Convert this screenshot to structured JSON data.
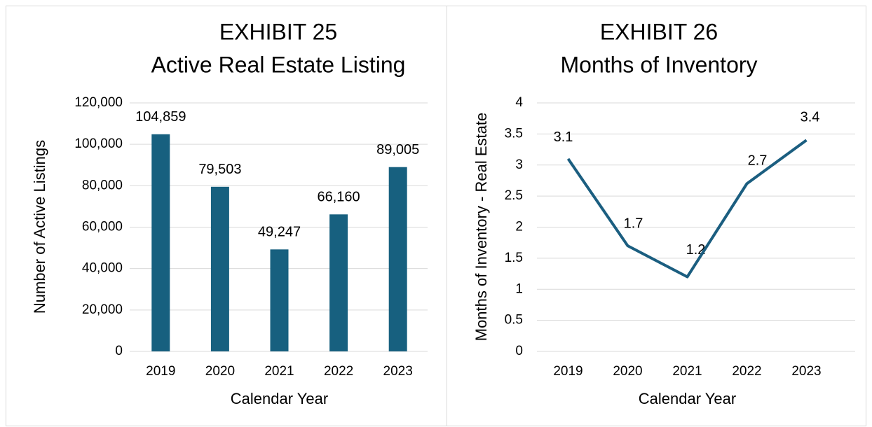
{
  "chart_data": [
    {
      "type": "bar",
      "title": [
        "EXHIBIT 25",
        "Active Real Estate Listing"
      ],
      "y_label": "Number of Active Listings",
      "x_label": "Calendar Year",
      "categories": [
        "2019",
        "2020",
        "2021",
        "2022",
        "2023"
      ],
      "values": [
        104859,
        79503,
        49247,
        66160,
        89005
      ],
      "value_labels": [
        "104,859",
        "79,503",
        "49,247",
        "66,160",
        "89,005"
      ],
      "color": "#17607f",
      "ylim": [
        0,
        120000
      ],
      "yticks": [
        0,
        {
          "value": 20000,
          "label": "20,000"
        },
        {
          "value": 40000,
          "label": "40,000"
        },
        {
          "value": 60000,
          "label": "60,000"
        },
        {
          "value": 80000,
          "label": "80,000"
        },
        {
          "value": 100000,
          "label": "100,000"
        },
        {
          "value": 120000,
          "label": "120,000"
        }
      ],
      "grid": true
    },
    {
      "type": "line",
      "title": [
        "EXHIBIT 26",
        "Months of Inventory"
      ],
      "y_label": "Months of Inventory - Real Estate",
      "x_label": "Calendar Year",
      "categories": [
        "2019",
        "2020",
        "2021",
        "2022",
        "2023"
      ],
      "values": [
        3.1,
        1.7,
        1.2,
        2.7,
        3.4
      ],
      "color": "#1b5e80",
      "ylim": [
        0,
        4
      ],
      "yticks": [
        0,
        0.5,
        1,
        1.5,
        2,
        2.5,
        3,
        3.5,
        4
      ],
      "grid": true
    }
  ]
}
